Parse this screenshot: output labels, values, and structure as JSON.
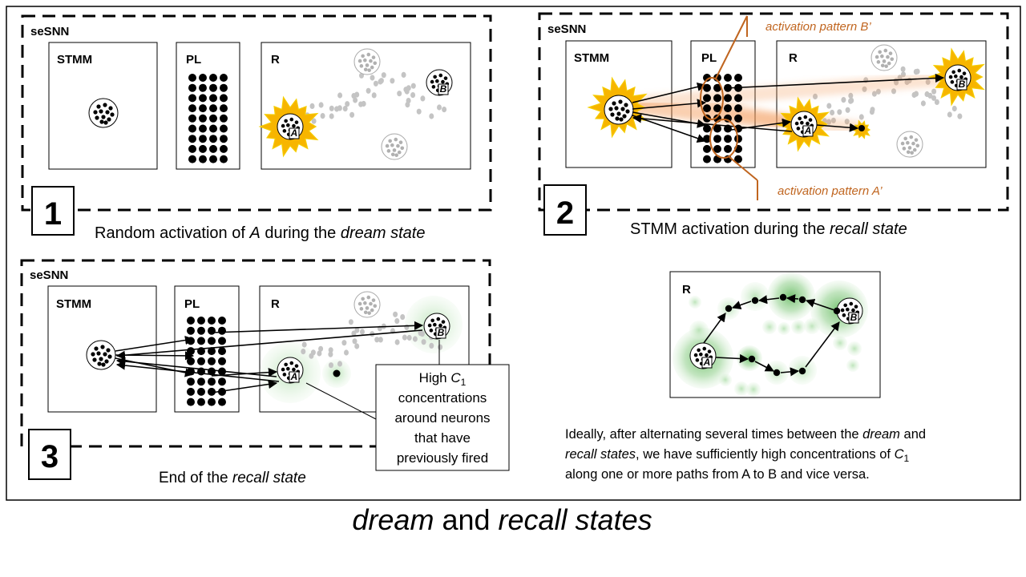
{
  "title": {
    "part1": "dream",
    "part2": " and ",
    "part3": "recall states"
  },
  "labels": {
    "sesnn": "seSNN",
    "stmm": "STMM",
    "pl": "PL",
    "r": "R",
    "a": "A",
    "b": "B"
  },
  "panel1": {
    "number": "1",
    "caption_pre": "Random activation of ",
    "caption_a": "A",
    "caption_mid": " during the ",
    "caption_it": "dream state"
  },
  "panel2": {
    "number": "2",
    "caption_pre": "STMM activation during the ",
    "caption_it": "recall state",
    "pattern_b": "activation pattern B’",
    "pattern_a": "activation pattern A’"
  },
  "panel3": {
    "number": "3",
    "caption_pre": "End of the ",
    "caption_it": "recall state",
    "callout": {
      "line1_pre": "High ",
      "line1_var": "C",
      "line1_sub": "1",
      "line2": "concentrations",
      "line3": "around neurons",
      "line4": "that have",
      "line5": "previously fired"
    }
  },
  "panel4": {
    "text_l1_pre": "Ideally, after alternating several times between the ",
    "text_l1_it": "dream",
    "text_l1_post": " and",
    "text_l2_it": "recall states",
    "text_l2_post": ", we have sufficiently high concentrations of ",
    "text_l2_var": "C",
    "text_l2_sub": "1",
    "text_l3": "along one or more paths from A to B and vice versa."
  },
  "colors": {
    "orange": "#c0651f",
    "glow": "#f5b800",
    "green": "#7fc27a",
    "gray": "#bdbdbd"
  }
}
